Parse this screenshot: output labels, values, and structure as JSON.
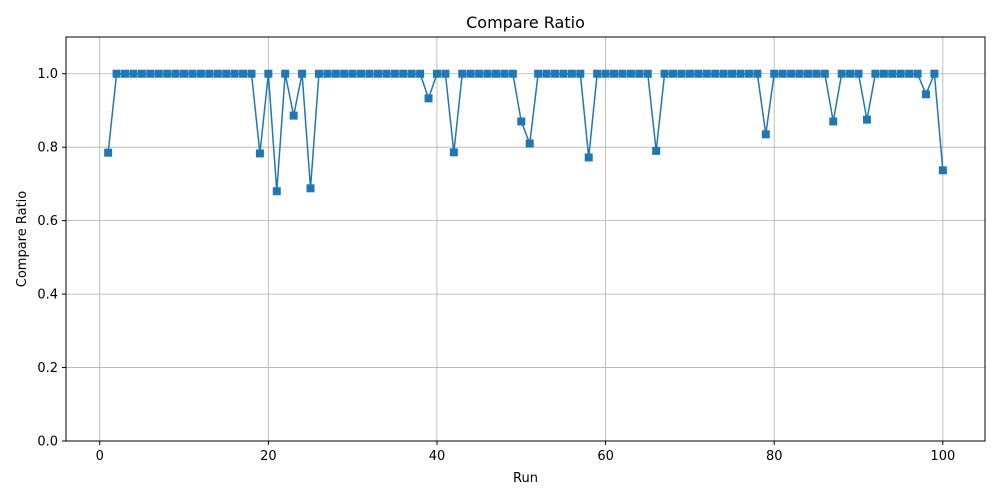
{
  "chart_data": {
    "type": "line",
    "title": "Compare Ratio",
    "xlabel": "Run",
    "ylabel": "Compare Ratio",
    "xlim": [
      -4,
      105
    ],
    "ylim": [
      0.0,
      1.1
    ],
    "xticks": [
      0,
      20,
      40,
      60,
      80,
      100
    ],
    "xtick_labels": [
      "0",
      "20",
      "40",
      "60",
      "80",
      "100"
    ],
    "yticks": [
      0.0,
      0.2,
      0.4,
      0.6,
      0.8,
      1.0
    ],
    "ytick_labels": [
      "0.0",
      "0.2",
      "0.4",
      "0.6",
      "0.8",
      "1.0"
    ],
    "grid": true,
    "marker": "square",
    "color": "#1f77b4",
    "series": [
      {
        "x": [
          1,
          2,
          3,
          4,
          5,
          6,
          7,
          8,
          9,
          10,
          11,
          12,
          13,
          14,
          15,
          16,
          17,
          18,
          19,
          20,
          21,
          22,
          23,
          24,
          25,
          26,
          27,
          28,
          29,
          30,
          31,
          32,
          33,
          34,
          35,
          36,
          37,
          38,
          39,
          40,
          41,
          42,
          43,
          44,
          45,
          46,
          47,
          48,
          49,
          50,
          51,
          52,
          53,
          54,
          55,
          56,
          57,
          58,
          59,
          60,
          61,
          62,
          63,
          64,
          65,
          66,
          67,
          68,
          69,
          70,
          71,
          72,
          73,
          74,
          75,
          76,
          77,
          78,
          79,
          80,
          81,
          82,
          83,
          84,
          85,
          86,
          87,
          88,
          89,
          90,
          91,
          92,
          93,
          94,
          95,
          96,
          97,
          98,
          99,
          100
        ],
        "values": [
          0.785,
          1.0,
          1.0,
          1.0,
          1.0,
          1.0,
          1.0,
          1.0,
          1.0,
          1.0,
          1.0,
          1.0,
          1.0,
          1.0,
          1.0,
          1.0,
          1.0,
          1.0,
          0.783,
          1.0,
          0.68,
          1.0,
          0.886,
          1.0,
          0.688,
          1.0,
          1.0,
          1.0,
          1.0,
          1.0,
          1.0,
          1.0,
          1.0,
          1.0,
          1.0,
          1.0,
          1.0,
          1.0,
          0.933,
          1.0,
          1.0,
          0.786,
          1.0,
          1.0,
          1.0,
          1.0,
          1.0,
          1.0,
          1.0,
          0.87,
          0.81,
          1.0,
          1.0,
          1.0,
          1.0,
          1.0,
          1.0,
          0.772,
          1.0,
          1.0,
          1.0,
          1.0,
          1.0,
          1.0,
          1.0,
          0.79,
          1.0,
          1.0,
          1.0,
          1.0,
          1.0,
          1.0,
          1.0,
          1.0,
          1.0,
          1.0,
          1.0,
          1.0,
          0.835,
          1.0,
          1.0,
          1.0,
          1.0,
          1.0,
          1.0,
          1.0,
          0.87,
          1.0,
          1.0,
          1.0,
          0.875,
          1.0,
          1.0,
          1.0,
          1.0,
          1.0,
          1.0,
          0.944,
          1.0,
          0.737
        ]
      }
    ]
  }
}
